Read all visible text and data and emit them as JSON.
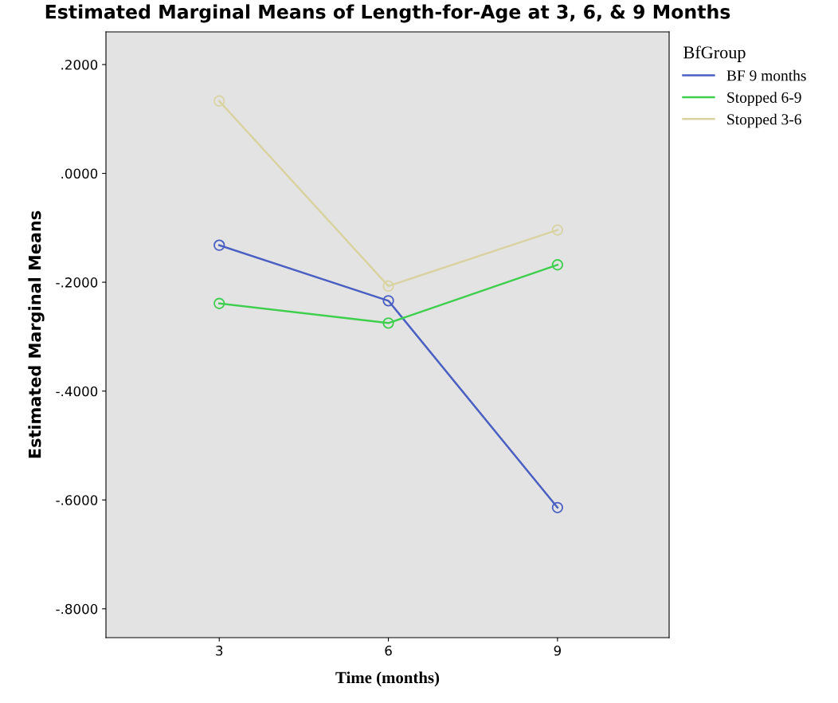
{
  "chart_data": {
    "type": "line",
    "title": "Estimated Marginal Means of Length-for-Age at 3, 6, & 9 Months",
    "xlabel": "Time (months)",
    "ylabel": "Estimated Marginal Means",
    "legend_title": "BfGroup",
    "categories": [
      "3",
      "6",
      "9"
    ],
    "series": [
      {
        "name": "BF 9 months",
        "color": "#4a5fc1",
        "values": [
          -0.132,
          -0.234,
          -0.614
        ]
      },
      {
        "name": "Stopped 6-9",
        "color": "#3fcf4f",
        "values": [
          -0.239,
          -0.275,
          -0.168
        ]
      },
      {
        "name": "Stopped 3-6",
        "color": "#d8d3a0",
        "values": [
          0.133,
          -0.207,
          -0.104
        ]
      }
    ],
    "ylim": [
      -0.853,
      0.26
    ],
    "yticks": [
      {
        "value": -0.8,
        "label": "-.8000"
      },
      {
        "value": -0.6,
        "label": "-.6000"
      },
      {
        "value": -0.4,
        "label": "-.4000"
      },
      {
        "value": -0.2,
        "label": "-.2000"
      },
      {
        "value": 0,
        "label": ".0000"
      },
      {
        "value": 0.2,
        "label": ".2000"
      }
    ],
    "marker": "circle",
    "line_style": "solid",
    "grid": false,
    "legend": "top right"
  }
}
